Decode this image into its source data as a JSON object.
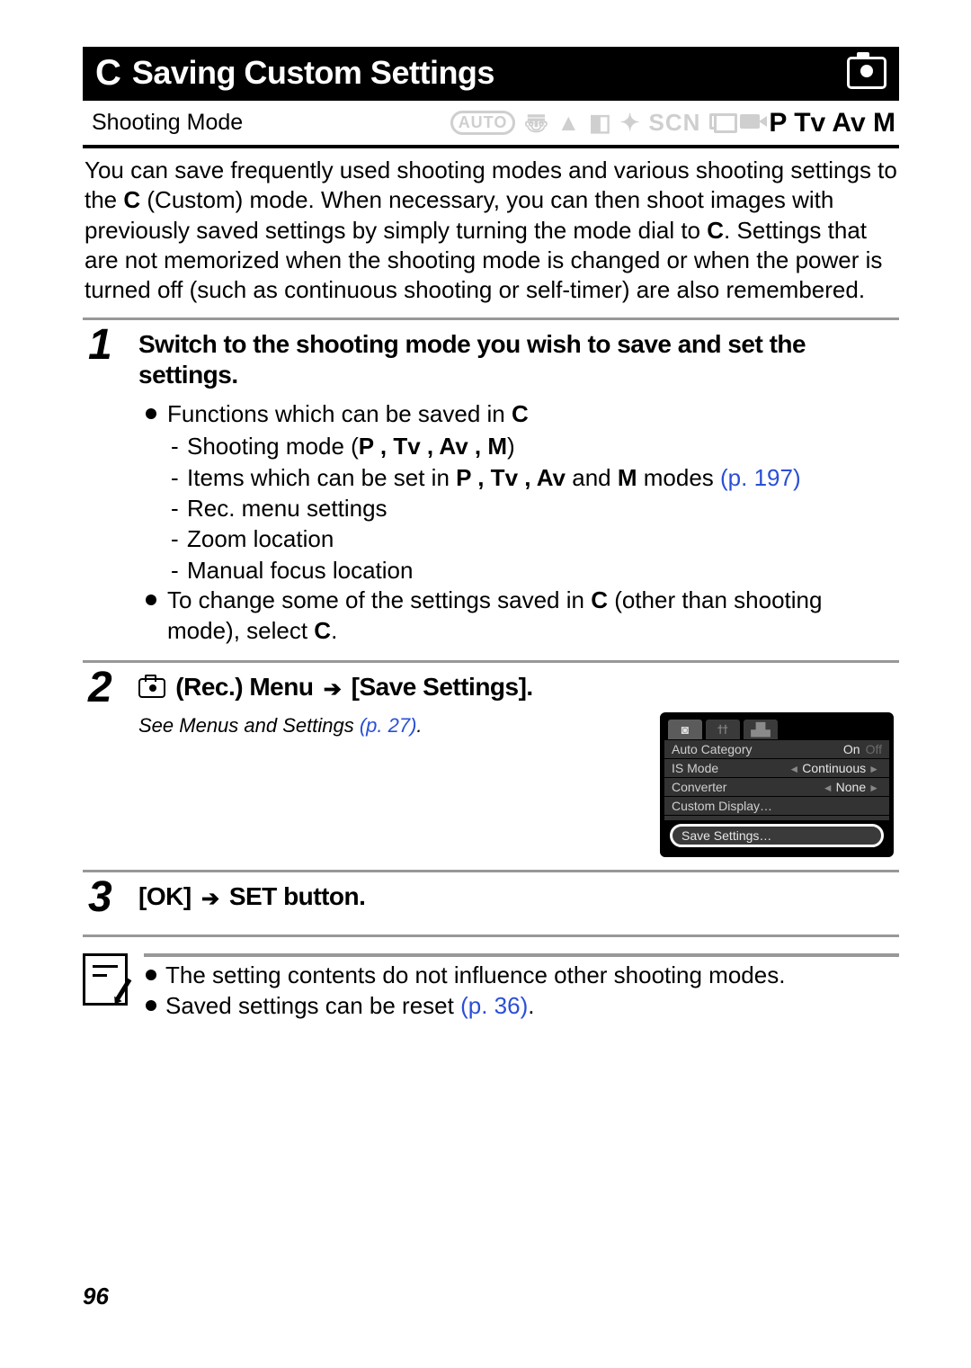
{
  "title": {
    "c_glyph": "C",
    "text": "Saving Custom Settings"
  },
  "mode_row": {
    "label": "Shooting Mode",
    "auto": "AUTO",
    "scn": "SCN",
    "strong": "P Tv Av M"
  },
  "intro": {
    "p1a": "You can save frequently used shooting modes and various shooting settings to the ",
    "c1": "C",
    "p1b": " (Custom) mode. When necessary, you can then shoot images with previously saved settings by simply turning the mode dial to ",
    "c2": "C",
    "p1c": ". Settings that are not memorized when the shooting mode is changed or when the power is turned off (such as continuous shooting or self-timer) are also remembered."
  },
  "steps": [
    {
      "num": "1",
      "title": "Switch to the shooting mode you wish to save and set the settings.",
      "b1a": "Functions which can be saved in ",
      "b1c": "C",
      "d1a": "Shooting mode (",
      "d1modes": "P , Tv , Av , M",
      "d1b": ")",
      "d2a": "Items which can be set in ",
      "d2modes": "P , Tv , Av",
      "d2mid": " and ",
      "d2m": "M",
      "d2b": " modes ",
      "d2link": "(p. 197)",
      "d3": "Rec. menu settings",
      "d4": "Zoom location",
      "d5": "Manual focus location",
      "b2a": "To change some of the settings saved in ",
      "b2c": "C",
      "b2b": " (other than shooting mode), select ",
      "b2c2": "C",
      "b2end": "."
    },
    {
      "num": "2",
      "title_a": "(Rec.) Menu",
      "title_b": "[Save Settings].",
      "see_a": "See Menus and Settings ",
      "see_link": "(p. 27)",
      "see_b": "."
    },
    {
      "num": "3",
      "title_a": "[OK]",
      "title_b": "SET button."
    }
  ],
  "lcd": {
    "rows": [
      {
        "label": "Auto Category",
        "val": "On",
        "muted": "Off"
      },
      {
        "label": "IS Mode",
        "val": "Continuous",
        "chev": true
      },
      {
        "label": "Converter",
        "val": "None",
        "chev": true
      },
      {
        "label": "Custom Display…",
        "val": ""
      }
    ],
    "save": "Save Settings…"
  },
  "notes": {
    "n1": "The setting contents do not influence other shooting modes.",
    "n2a": "Saved settings can be reset ",
    "n2link": "(p. 36)",
    "n2b": "."
  },
  "page_number": "96"
}
